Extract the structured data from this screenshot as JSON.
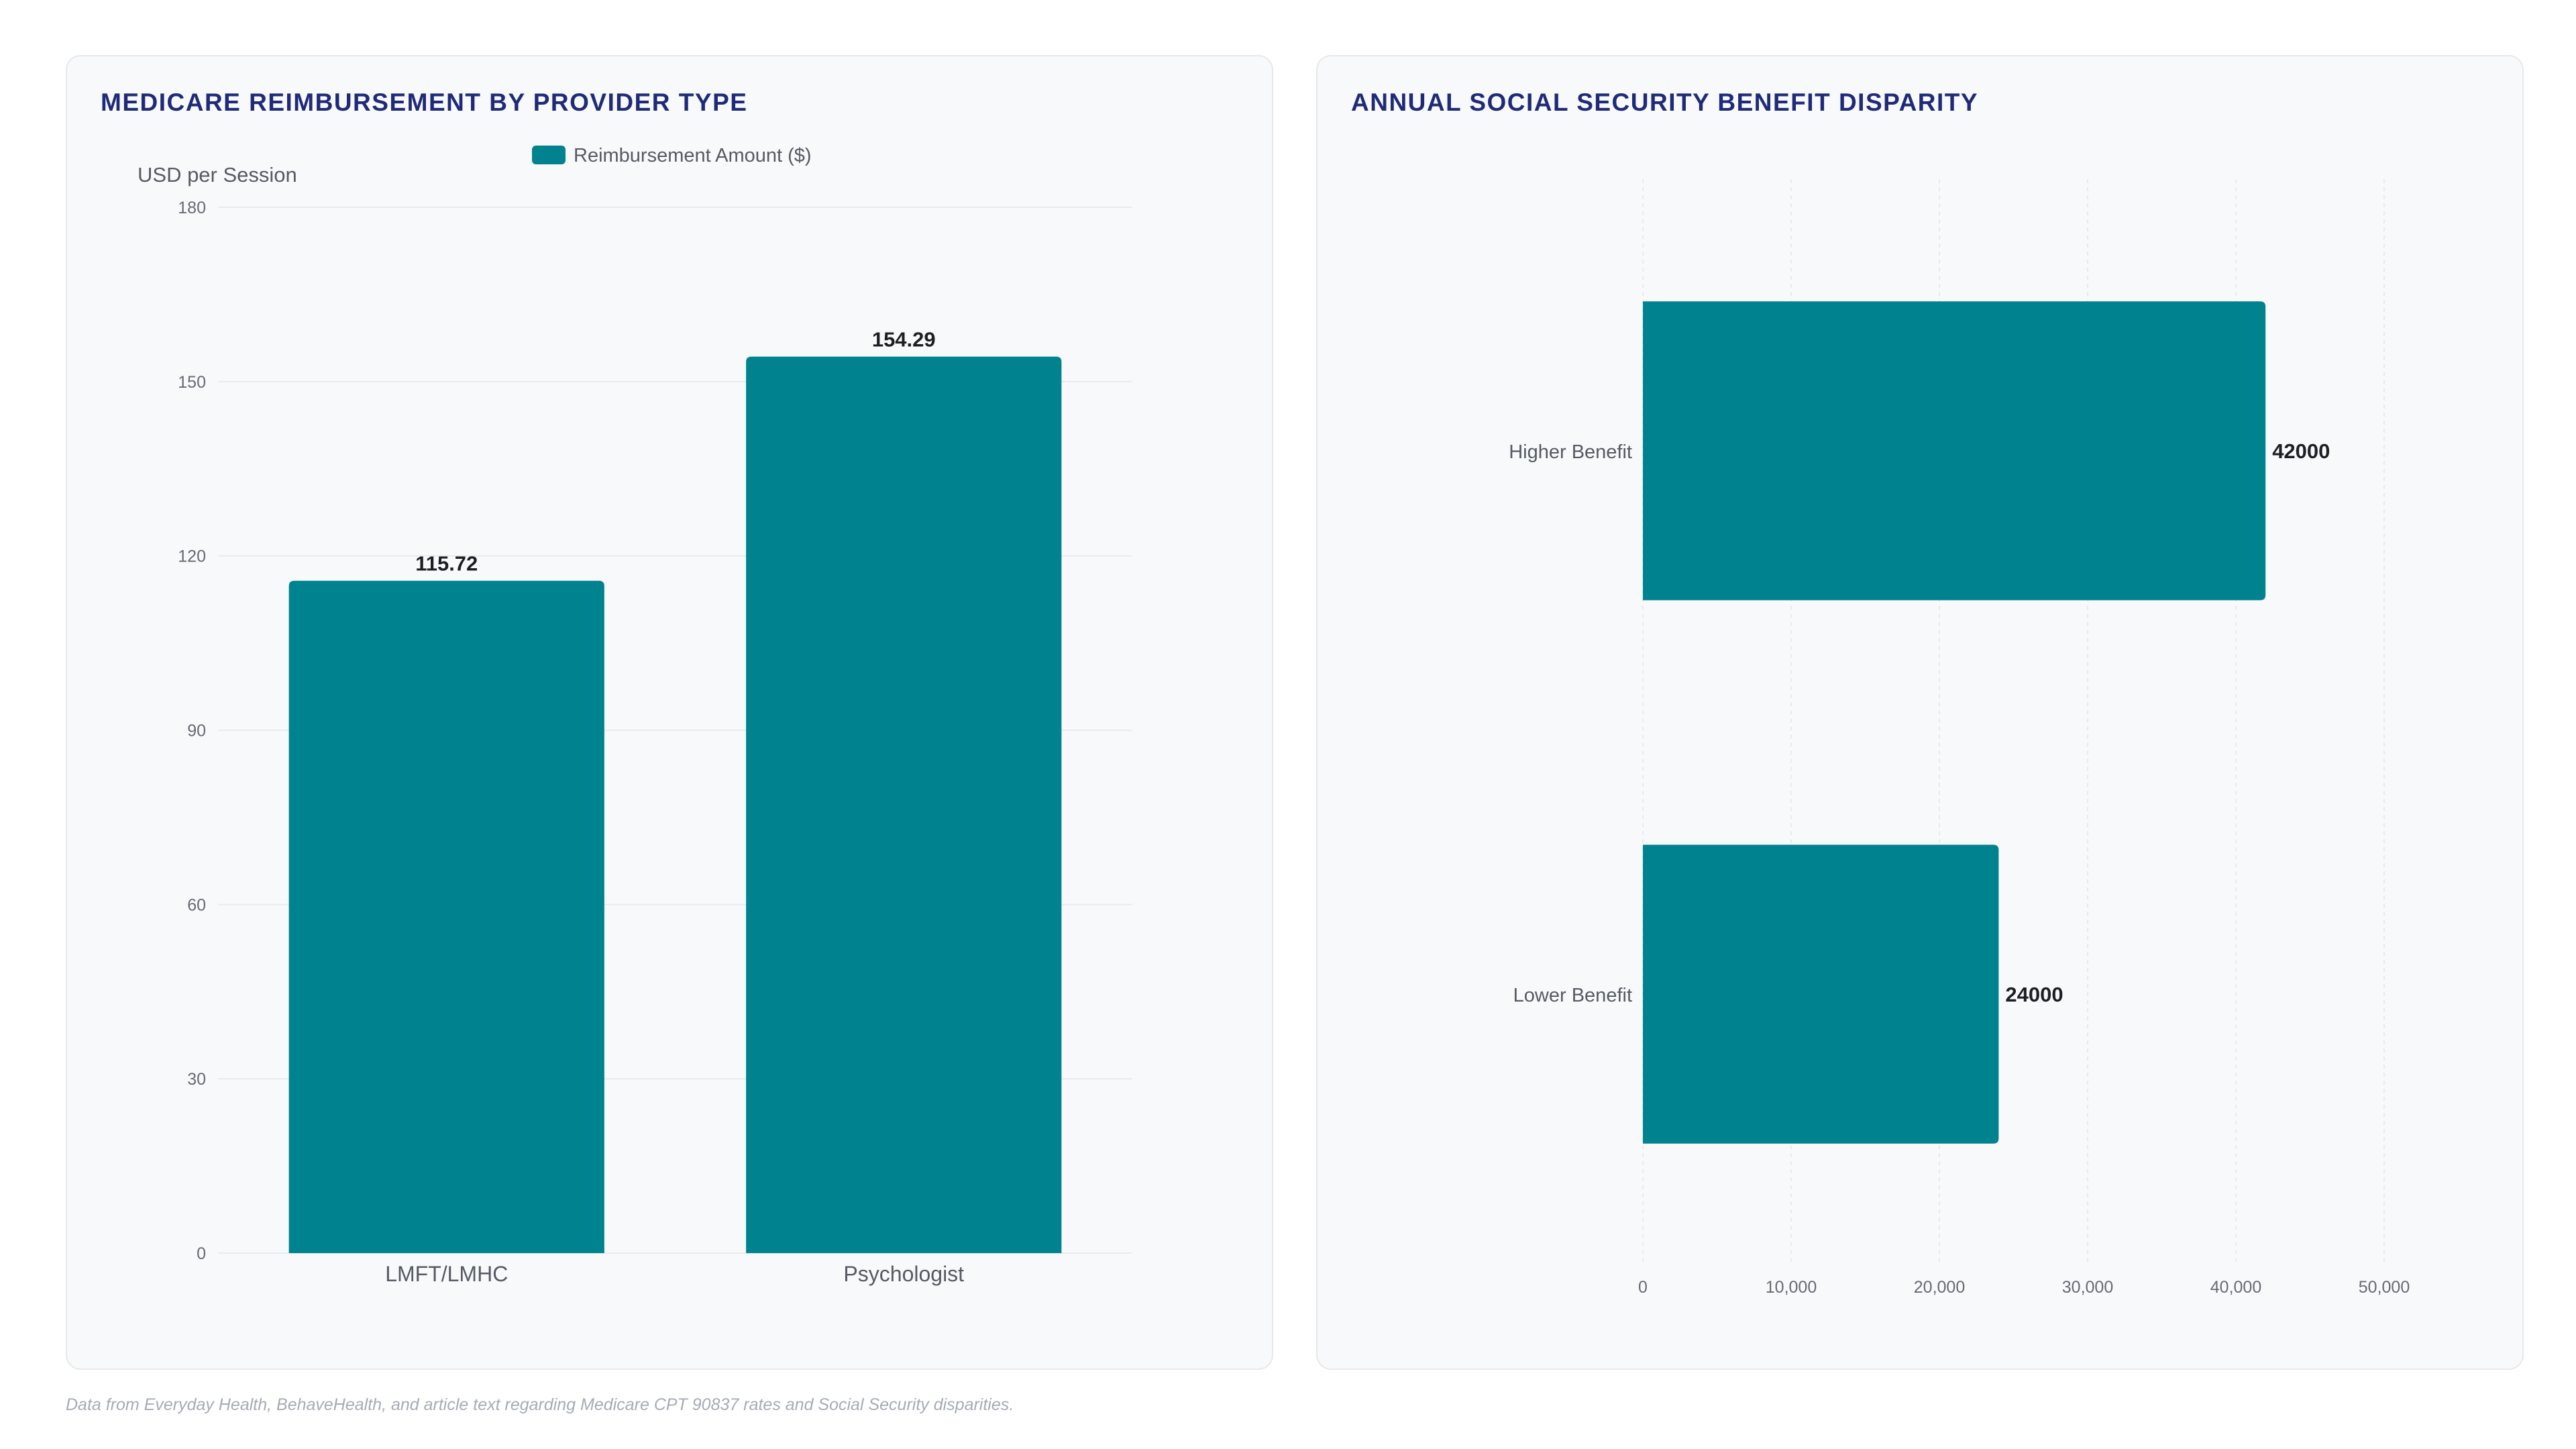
{
  "chart_data": [
    {
      "type": "bar",
      "orientation": "vertical",
      "title": "MEDICARE REIMBURSEMENT BY PROVIDER TYPE",
      "categories": [
        "LMFT/LMHC",
        "Psychologist"
      ],
      "series": [
        {
          "name": "Reimbursement Amount ($)",
          "values": [
            115.72,
            154.29
          ],
          "labels": [
            "115.72",
            "154.29"
          ],
          "color": "#00838f"
        }
      ],
      "ylabel": "USD per Session",
      "xlabel": "",
      "ylim": [
        0,
        180
      ],
      "yticks": [
        0,
        30,
        60,
        90,
        120,
        150,
        180
      ],
      "ytick_labels": [
        "0",
        "30",
        "60",
        "90",
        "120",
        "150",
        "180"
      ],
      "grid": true,
      "legend": "top-center"
    },
    {
      "type": "bar",
      "orientation": "horizontal",
      "title": "ANNUAL SOCIAL SECURITY BENEFIT DISPARITY",
      "categories": [
        "Higher Benefit",
        "Lower Benefit"
      ],
      "values": [
        42000,
        24000
      ],
      "labels": [
        "42000",
        "24000"
      ],
      "color": "#00838f",
      "xlabel": "",
      "ylabel": "",
      "xlim": [
        0,
        50000
      ],
      "xticks": [
        0,
        10000,
        20000,
        30000,
        40000,
        50000
      ],
      "xtick_labels": [
        "0",
        "10,000",
        "20,000",
        "30,000",
        "40,000",
        "50,000"
      ],
      "grid": true
    }
  ],
  "footnote": "Data from Everyday Health, BehaveHealth, and article text regarding Medicare CPT 90837 rates and Social Security disparities."
}
